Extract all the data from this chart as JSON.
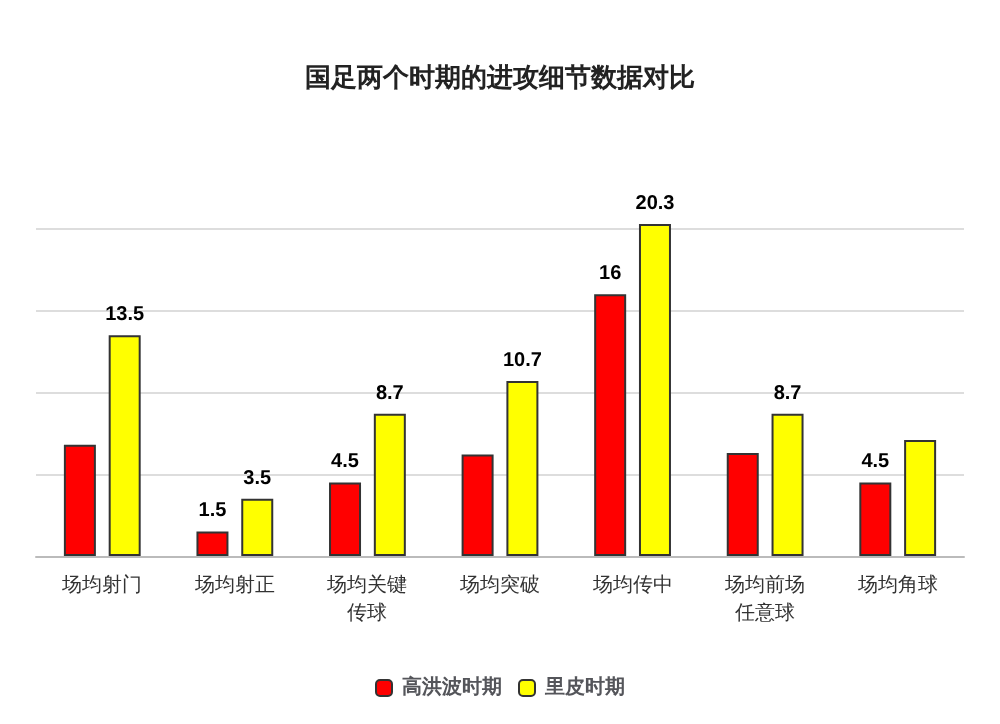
{
  "chart_data": {
    "type": "bar",
    "title": "国足两个时期的进攻细节数据对比",
    "categories": [
      "场均射门",
      "场均射正",
      "场均关键传球",
      "场均突破",
      "场均传中",
      "场均前场任意球",
      "场均角球"
    ],
    "series": [
      {
        "name": "高洪波时期",
        "color": "#ff0000",
        "values": [
          6.8,
          1.5,
          4.5,
          6.2,
          16,
          6.3,
          4.5
        ],
        "value_labels": [
          null,
          "1.5",
          "4.5",
          null,
          "16",
          null,
          "4.5"
        ]
      },
      {
        "name": "里皮时期",
        "color": "#ffff00",
        "values": [
          13.5,
          3.5,
          8.7,
          10.7,
          20.3,
          8.7,
          7.1
        ],
        "value_labels": [
          "13.5",
          "3.5",
          "8.7",
          "10.7",
          "20.3",
          "8.7",
          null
        ]
      }
    ],
    "yticks": [
      {
        "value": 0,
        "label": null
      },
      {
        "value": 5,
        "label": null
      },
      {
        "value": 10,
        "label": null
      },
      {
        "value": 15,
        "label": null
      },
      {
        "value": 20,
        "label": null
      }
    ],
    "tick_labels": "x",
    "grid": "y",
    "legend": "bottom"
  }
}
